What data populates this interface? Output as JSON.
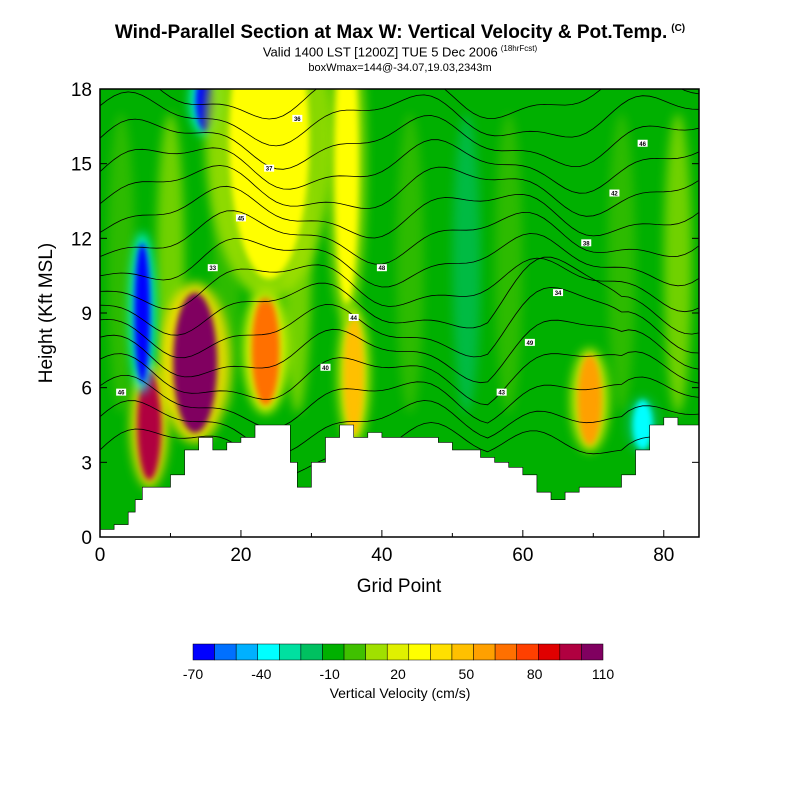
{
  "header": {
    "title": "Wind-Parallel Section at Max W: Vertical Velocity & Pot.Temp.",
    "title_mark": "(C)",
    "valid_line": "Valid 1400 LST [1200Z] TUE 5 Dec 2006",
    "forecast_tag": "(18hrFcst)",
    "box_line": "boxWmax=144@-34.07,19.03,2343m"
  },
  "chart_data": {
    "type": "heatmap",
    "title": "Wind-Parallel Section at Max W: Vertical Velocity & Pot.Temp.",
    "xlabel": "Grid Point",
    "ylabel": "Height (Kft MSL)",
    "xlim": [
      0,
      85
    ],
    "ylim": [
      0,
      18
    ],
    "x_ticks": [
      0,
      20,
      40,
      60,
      80
    ],
    "y_ticks": [
      0,
      3,
      6,
      9,
      12,
      15,
      18
    ],
    "colorbar": {
      "label": "Vertical Velocity (cm/s)",
      "levels": [
        -70,
        -60,
        -50,
        -40,
        -30,
        -20,
        -10,
        0,
        10,
        20,
        30,
        40,
        50,
        60,
        70,
        80,
        90,
        100,
        110
      ],
      "tick_labels": [
        "-70",
        "-40",
        "-10",
        "20",
        "50",
        "80",
        "110"
      ],
      "tick_values": [
        -70,
        -40,
        -10,
        20,
        50,
        80,
        110
      ],
      "colors": [
        "#0000ff",
        "#0070ff",
        "#00b0ff",
        "#00ffff",
        "#00e0a0",
        "#00c060",
        "#00b000",
        "#40c000",
        "#a0e000",
        "#e0f000",
        "#ffff00",
        "#ffe000",
        "#ffc000",
        "#ffa000",
        "#ff7000",
        "#ff4000",
        "#e00000",
        "#b00040",
        "#800060"
      ]
    },
    "terrain_height": [
      [
        0,
        0.3
      ],
      [
        2,
        0.5
      ],
      [
        4,
        1
      ],
      [
        5,
        1.5
      ],
      [
        6,
        2
      ],
      [
        8,
        2
      ],
      [
        10,
        2.5
      ],
      [
        12,
        3.5
      ],
      [
        14,
        4
      ],
      [
        16,
        3.5
      ],
      [
        18,
        3.8
      ],
      [
        20,
        4
      ],
      [
        22,
        4.5
      ],
      [
        26,
        4.5
      ],
      [
        27,
        3
      ],
      [
        28,
        2
      ],
      [
        30,
        3
      ],
      [
        32,
        4
      ],
      [
        34,
        4.5
      ],
      [
        36,
        4
      ],
      [
        38,
        4.2
      ],
      [
        40,
        4
      ],
      [
        44,
        4
      ],
      [
        48,
        3.8
      ],
      [
        50,
        3.5
      ],
      [
        54,
        3.2
      ],
      [
        56,
        3
      ],
      [
        58,
        2.8
      ],
      [
        60,
        2.5
      ],
      [
        62,
        1.8
      ],
      [
        64,
        1.5
      ],
      [
        66,
        1.8
      ],
      [
        68,
        2
      ],
      [
        70,
        2
      ],
      [
        72,
        2
      ],
      [
        74,
        2.5
      ],
      [
        76,
        3.5
      ],
      [
        78,
        4.5
      ],
      [
        80,
        4.8
      ],
      [
        82,
        4.5
      ],
      [
        85,
        4.5
      ]
    ],
    "vertical_velocity_cells": [
      {
        "x": 7,
        "z": 4.5,
        "value": 100
      },
      {
        "x": 13.5,
        "z": 7,
        "value": 110
      },
      {
        "x": 23.5,
        "z": 7.5,
        "value": 70
      },
      {
        "x": 36,
        "z": 6.5,
        "value": 50
      },
      {
        "x": 69.5,
        "z": 5.5,
        "value": 60
      },
      {
        "x": 6,
        "z": 9,
        "value": -70
      },
      {
        "x": 15,
        "z": 17.5,
        "value": -70
      },
      {
        "x": 77,
        "z": 4.5,
        "value": -40
      },
      {
        "x": 24,
        "z": 16,
        "value": 30
      },
      {
        "x": 35,
        "z": 15,
        "value": 30
      }
    ],
    "isentrope_labels": [
      "46",
      "48",
      "46",
      "44",
      "42",
      "40",
      "38",
      "36",
      "34",
      "37",
      "49",
      "45",
      "43",
      "33"
    ]
  },
  "colors": {
    "background": "#00b000",
    "frame": "#000000",
    "terrain": "#ffffff"
  }
}
